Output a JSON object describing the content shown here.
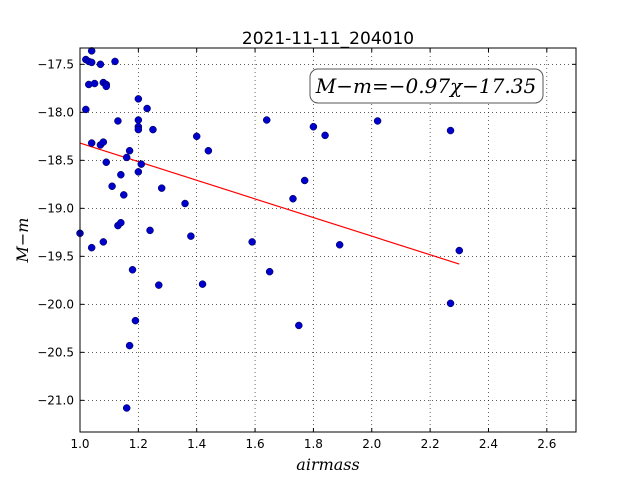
{
  "chart_data": {
    "type": "scatter",
    "title": "2021-11-11_204010",
    "xlabel": "airmass",
    "ylabel": "M−m",
    "xlim": [
      1.0,
      2.7
    ],
    "ylim": [
      -21.33,
      -17.33
    ],
    "y_inverted": true,
    "grid": true,
    "x_ticks": [
      1.0,
      1.2,
      1.4,
      1.6,
      1.8,
      2.0,
      2.2,
      2.4,
      2.6
    ],
    "x_tick_labels": [
      "1.0",
      "1.2",
      "1.4",
      "1.6",
      "1.8",
      "2.0",
      "2.2",
      "2.4",
      "2.6"
    ],
    "y_ticks": [
      -17.5,
      -18.0,
      -18.5,
      -19.0,
      -19.5,
      -20.0,
      -20.5,
      -21.0
    ],
    "y_tick_labels": [
      "−17.5",
      "−18.0",
      "−18.5",
      "−19.0",
      "−19.5",
      "−20.0",
      "−20.5",
      "−21.0"
    ],
    "annotation": "M−m=−0.97χ−17.35",
    "point_color": "#0000cc",
    "fit_color": "#ff0000",
    "points": [
      [
        1.0,
        -19.26
      ],
      [
        1.02,
        -17.45
      ],
      [
        1.03,
        -17.47
      ],
      [
        1.03,
        -17.71
      ],
      [
        1.02,
        -17.97
      ],
      [
        1.04,
        -17.36
      ],
      [
        1.04,
        -17.48
      ],
      [
        1.05,
        -17.7
      ],
      [
        1.04,
        -18.32
      ],
      [
        1.04,
        -19.41
      ],
      [
        1.07,
        -17.5
      ],
      [
        1.08,
        -17.69
      ],
      [
        1.09,
        -17.71
      ],
      [
        1.09,
        -17.73
      ],
      [
        1.07,
        -18.34
      ],
      [
        1.08,
        -18.31
      ],
      [
        1.09,
        -18.52
      ],
      [
        1.11,
        -18.77
      ],
      [
        1.08,
        -19.35
      ],
      [
        1.12,
        -17.47
      ],
      [
        1.13,
        -18.09
      ],
      [
        1.14,
        -18.65
      ],
      [
        1.13,
        -19.18
      ],
      [
        1.14,
        -19.15
      ],
      [
        1.15,
        -18.86
      ],
      [
        1.16,
        -18.47
      ],
      [
        1.17,
        -18.4
      ],
      [
        1.18,
        -19.64
      ],
      [
        1.17,
        -20.43
      ],
      [
        1.19,
        -20.17
      ],
      [
        1.16,
        -21.08
      ],
      [
        1.2,
        -17.86
      ],
      [
        1.2,
        -18.08
      ],
      [
        1.2,
        -18.15
      ],
      [
        1.2,
        -18.18
      ],
      [
        1.21,
        -18.54
      ],
      [
        1.2,
        -18.62
      ],
      [
        1.23,
        -17.96
      ],
      [
        1.25,
        -18.18
      ],
      [
        1.24,
        -19.23
      ],
      [
        1.28,
        -18.79
      ],
      [
        1.27,
        -19.8
      ],
      [
        1.36,
        -18.95
      ],
      [
        1.38,
        -19.29
      ],
      [
        1.4,
        -18.25
      ],
      [
        1.42,
        -19.79
      ],
      [
        1.44,
        -18.4
      ],
      [
        1.59,
        -19.35
      ],
      [
        1.64,
        -18.08
      ],
      [
        1.65,
        -19.66
      ],
      [
        1.73,
        -18.9
      ],
      [
        1.77,
        -18.71
      ],
      [
        1.75,
        -20.22
      ],
      [
        1.8,
        -18.15
      ],
      [
        1.84,
        -18.24
      ],
      [
        1.89,
        -19.38
      ],
      [
        2.02,
        -18.09
      ],
      [
        2.27,
        -18.19
      ],
      [
        2.27,
        -19.99
      ],
      [
        2.3,
        -19.44
      ]
    ],
    "fit_line": {
      "slope": -0.97,
      "intercept": -17.35,
      "x_range": [
        1.0,
        2.3
      ]
    }
  }
}
